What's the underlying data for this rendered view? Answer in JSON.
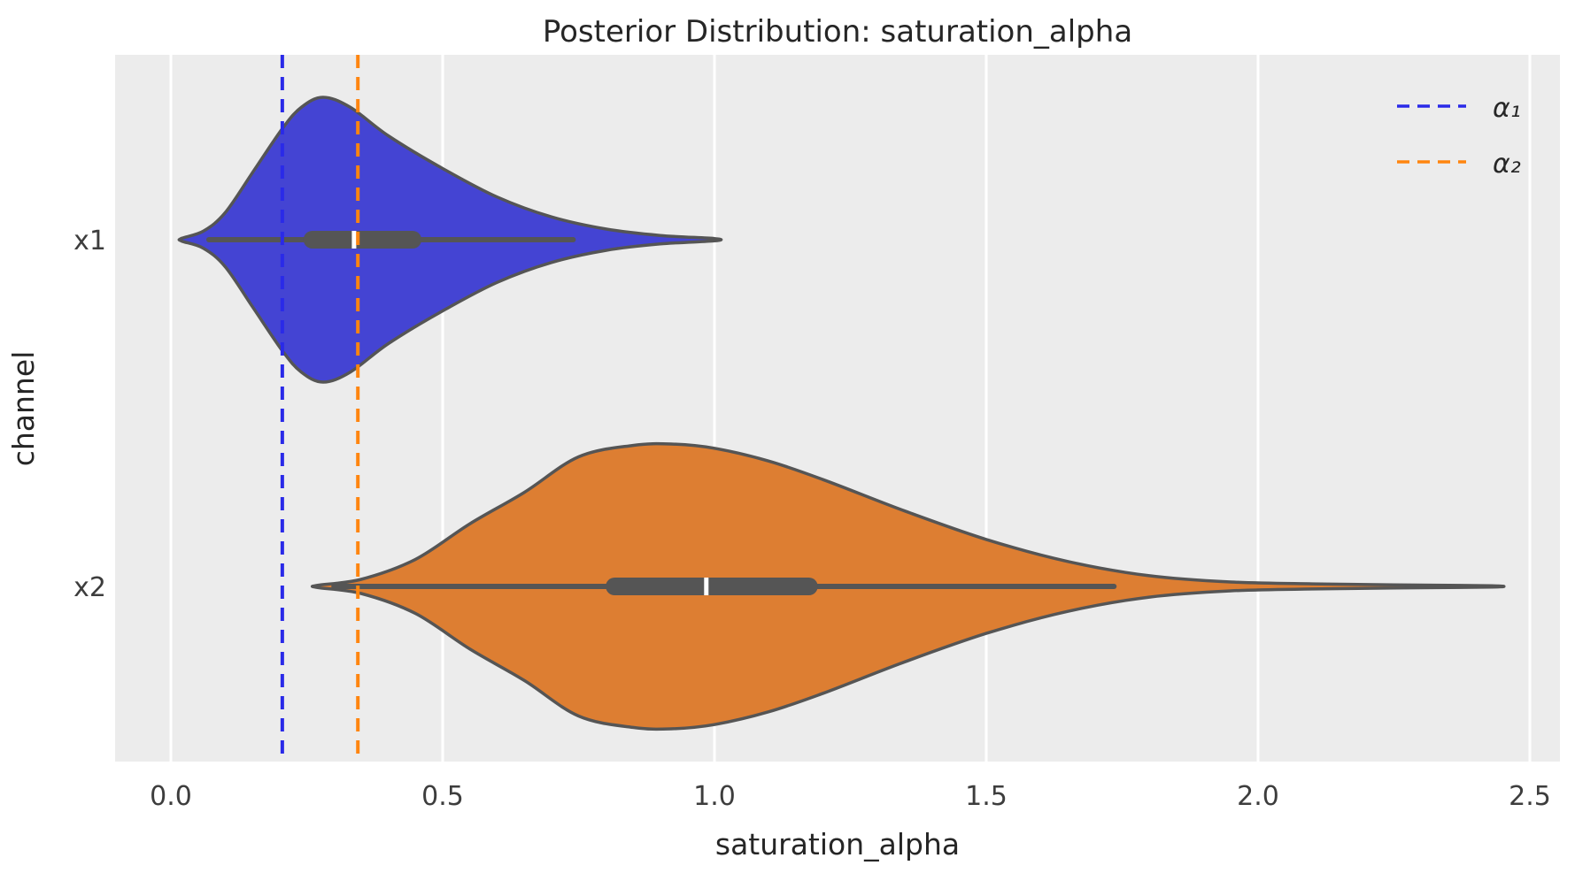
{
  "colors": {
    "figure_background": "#ffffff",
    "axes_background": "#ececec",
    "gridline": "#ffffff",
    "violin_edge": "#555555",
    "box": "#555555",
    "median_tick": "#ffffff",
    "title_text": "#262626",
    "tick_text": "#3d3d3d"
  },
  "chart_data": {
    "type": "violin",
    "title": "Posterior Distribution: saturation_alpha",
    "xlabel": "saturation_alpha",
    "ylabel": "channel",
    "categories": [
      "x1",
      "x2"
    ],
    "xticks": [
      "0.0",
      "0.5",
      "1.0",
      "1.5",
      "2.0",
      "2.5"
    ],
    "xtick_values": [
      0.0,
      0.5,
      1.0,
      1.5,
      2.0,
      2.5
    ],
    "xlim": [
      -0.1,
      2.56
    ],
    "grid": "vertical-only",
    "orientation": "horizontal",
    "legend": {
      "position": "upper-right",
      "entries": [
        {
          "label": "α₁",
          "color": "#2a2ae8",
          "line_style": "dashed"
        },
        {
          "label": "α₂",
          "color": "#ff850f",
          "line_style": "dashed"
        }
      ]
    },
    "vlines": [
      {
        "name": "alpha_1",
        "value": 0.205,
        "color": "#2a2ae8",
        "style": "dashed"
      },
      {
        "name": "alpha_2",
        "value": 0.344,
        "color": "#ff850f",
        "style": "dashed"
      }
    ],
    "series": [
      {
        "channel": "x1",
        "fill": "#4444d3",
        "support": [
          0.02,
          1.0
        ],
        "peak": 0.28,
        "box": {
          "q1": 0.244,
          "median": 0.337,
          "q3": 0.461,
          "whisker_low": 0.07,
          "whisker_high": 0.74
        },
        "profile": [
          [
            0.02,
            0.01
          ],
          [
            0.06,
            0.06
          ],
          [
            0.1,
            0.19
          ],
          [
            0.15,
            0.47
          ],
          [
            0.205,
            0.78
          ],
          [
            0.24,
            0.93
          ],
          [
            0.28,
            1.0
          ],
          [
            0.33,
            0.93
          ],
          [
            0.4,
            0.73
          ],
          [
            0.5,
            0.5
          ],
          [
            0.6,
            0.3
          ],
          [
            0.7,
            0.16
          ],
          [
            0.8,
            0.075
          ],
          [
            0.9,
            0.03
          ],
          [
            1.0,
            0.008
          ]
        ]
      },
      {
        "channel": "x2",
        "fill": "#dd7e32",
        "support": [
          0.27,
          2.43
        ],
        "peak": 0.92,
        "box": {
          "q1": 0.8,
          "median": 0.985,
          "q3": 1.19,
          "whisker_low": 0.3,
          "whisker_high": 1.735
        },
        "profile": [
          [
            0.27,
            0.008
          ],
          [
            0.35,
            0.05
          ],
          [
            0.45,
            0.19
          ],
          [
            0.55,
            0.44
          ],
          [
            0.65,
            0.66
          ],
          [
            0.75,
            0.91
          ],
          [
            0.85,
            0.99
          ],
          [
            0.92,
            1.0
          ],
          [
            1.0,
            0.97
          ],
          [
            1.1,
            0.88
          ],
          [
            1.2,
            0.75
          ],
          [
            1.35,
            0.53
          ],
          [
            1.5,
            0.33
          ],
          [
            1.65,
            0.175
          ],
          [
            1.8,
            0.075
          ],
          [
            1.95,
            0.031
          ],
          [
            2.1,
            0.018
          ],
          [
            2.25,
            0.011
          ],
          [
            2.43,
            0.005
          ]
        ]
      }
    ]
  }
}
